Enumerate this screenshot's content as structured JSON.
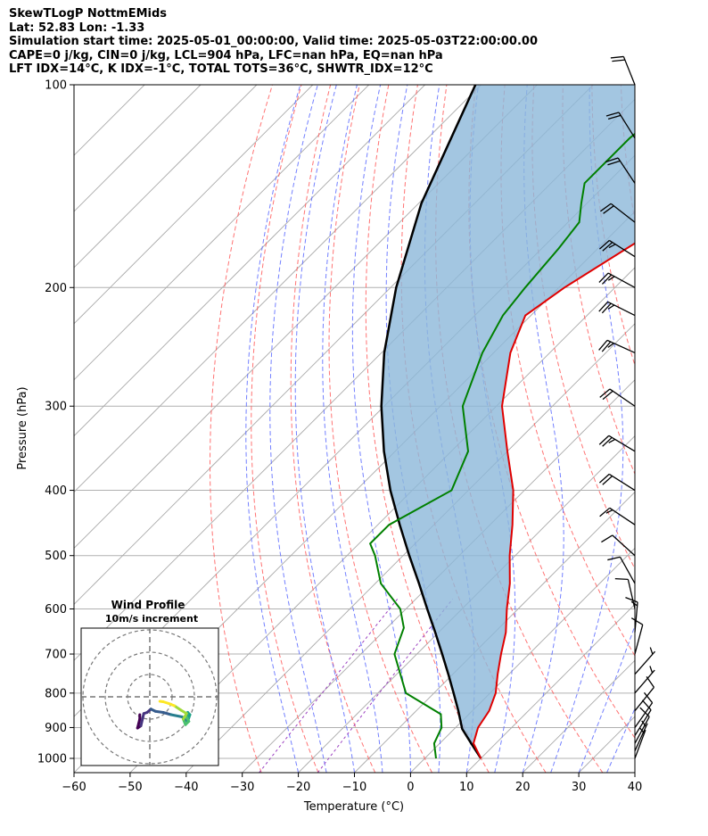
{
  "header": {
    "line1": "SkewTLogP NottmEMids",
    "line2": "Lat: 52.83   Lon: -1.33",
    "line3": "Simulation start time: 2025-05-01_00:00:00, Valid time: 2025-05-03T22:00:00.00",
    "line4": "CAPE=0 j/kg, CIN=0 j/kg, LCL=904 hPa, LFC=nan hPa, EQ=nan hPa",
    "line5": "LFT IDX=14°C, K IDX=-1°C, TOTAL TOTS=36°C, SHWTR_IDX=12°C"
  },
  "colors": {
    "temperature": "#e00000",
    "dewpoint": "#008000",
    "parcel": "#000000",
    "cape_fill": "#8cb8d9",
    "dry_adiabat": "#ff5a5a",
    "moist_adiabat": "#5a6aff",
    "mixing_ratio": "#9b40c0",
    "isotherm": "#aaaaaa"
  },
  "chart_data": [
    {
      "type": "line",
      "subtype": "skew-t log-p",
      "xlabel": "Temperature (°C)",
      "ylabel": "Pressure (hPa)",
      "xlim": [
        -60,
        40
      ],
      "ylim": [
        1050,
        100
      ],
      "y_scale": "log",
      "grid": true,
      "x_ticks": [
        -60,
        -50,
        -40,
        -30,
        -20,
        -10,
        0,
        10,
        20,
        30,
        40
      ],
      "x_tick_labels": [
        "−60",
        "−50",
        "−40",
        "−30",
        "−20",
        "−10",
        "0",
        "10",
        "20",
        "30",
        "40"
      ],
      "y_ticks": [
        1000,
        900,
        800,
        700,
        600,
        500,
        400,
        300,
        200,
        100
      ],
      "y_tick_labels": [
        "1000",
        "900",
        "800",
        "700",
        "600",
        "500",
        "400",
        "300",
        "200",
        "100"
      ],
      "series": [
        {
          "role": "temperature",
          "points": [
            [
              1000,
              10
            ],
            [
              950,
              6
            ],
            [
              900,
              4
            ],
            [
              850,
              3
            ],
            [
              800,
              1
            ],
            [
              750,
              -2
            ],
            [
              700,
              -5
            ],
            [
              650,
              -8
            ],
            [
              600,
              -12
            ],
            [
              550,
              -16
            ],
            [
              500,
              -21
            ],
            [
              450,
              -26
            ],
            [
              400,
              -32
            ],
            [
              350,
              -40
            ],
            [
              300,
              -49
            ],
            [
              250,
              -57
            ],
            [
              220,
              -61
            ],
            [
              200,
              -59
            ],
            [
              170,
              -54
            ],
            [
              150,
              -53
            ],
            [
              130,
              -53
            ],
            [
              115,
              -50
            ],
            [
              100,
              -46
            ]
          ]
        },
        {
          "role": "dewpoint",
          "points": [
            [
              1000,
              2
            ],
            [
              950,
              -1
            ],
            [
              900,
              -2.5
            ],
            [
              860,
              -5
            ],
            [
              800,
              -15
            ],
            [
              700,
              -24
            ],
            [
              640,
              -27
            ],
            [
              600,
              -31
            ],
            [
              550,
              -39
            ],
            [
              500,
              -45
            ],
            [
              480,
              -48
            ],
            [
              450,
              -48
            ],
            [
              400,
              -43
            ],
            [
              350,
              -47
            ],
            [
              300,
              -56
            ],
            [
              250,
              -62
            ],
            [
              220,
              -65
            ],
            [
              200,
              -66
            ],
            [
              175,
              -67
            ],
            [
              160,
              -68
            ],
            [
              150,
              -71
            ],
            [
              140,
              -74
            ],
            [
              120,
              -74
            ],
            [
              100,
              -72
            ]
          ]
        },
        {
          "role": "parcel",
          "points": [
            [
              1000,
              10
            ],
            [
              950,
              5.6
            ],
            [
              904,
              1.4
            ],
            [
              850,
              -2.5
            ],
            [
              800,
              -6.5
            ],
            [
              750,
              -10.8
            ],
            [
              700,
              -15.5
            ],
            [
              650,
              -20.6
            ],
            [
              600,
              -26.2
            ],
            [
              550,
              -32.2
            ],
            [
              500,
              -38.9
            ],
            [
              450,
              -46.1
            ],
            [
              400,
              -53.9
            ],
            [
              350,
              -62
            ],
            [
              300,
              -70.5
            ],
            [
              250,
              -79.5
            ],
            [
              200,
              -89
            ],
            [
              150,
              -99.5
            ],
            [
              100,
              -111
            ]
          ]
        }
      ],
      "cape_fill": "between parcel and temperature",
      "wind_barbs": [
        {
          "p": 1000,
          "u": 1.2,
          "v": 3.2
        },
        {
          "p": 975,
          "u": 1.5,
          "v": 3.3
        },
        {
          "p": 950,
          "u": 1.9,
          "v": 3.5
        },
        {
          "p": 925,
          "u": 2.2,
          "v": 3.5
        },
        {
          "p": 900,
          "u": 2.4,
          "v": 3.4
        },
        {
          "p": 850,
          "u": 2.6,
          "v": 3.2
        },
        {
          "p": 800,
          "u": 2.5,
          "v": 2.9
        },
        {
          "p": 750,
          "u": 2.3,
          "v": 2.6
        },
        {
          "p": 700,
          "u": 1.6,
          "v": 6.0
        },
        {
          "p": 650,
          "u": 0.6,
          "v": 6.7
        },
        {
          "p": 600,
          "u": -1.2,
          "v": 5.2
        },
        {
          "p": 550,
          "u": -2.5,
          "v": 4.5
        },
        {
          "p": 500,
          "u": -4.2,
          "v": 3.8
        },
        {
          "p": 450,
          "u": -6,
          "v": 4
        },
        {
          "p": 400,
          "u": -9.5,
          "v": 6
        },
        {
          "p": 350,
          "u": -10,
          "v": 6
        },
        {
          "p": 300,
          "u": -9.5,
          "v": 6.5
        },
        {
          "p": 250,
          "u": -11,
          "v": 5
        },
        {
          "p": 220,
          "u": -12,
          "v": 6
        },
        {
          "p": 200,
          "u": -12,
          "v": 6.5
        },
        {
          "p": 180,
          "u": -11,
          "v": 7
        },
        {
          "p": 160,
          "u": -9,
          "v": 7
        },
        {
          "p": 140,
          "u": -6,
          "v": 9
        },
        {
          "p": 120,
          "u": -5,
          "v": 8
        },
        {
          "p": 100,
          "u": -4,
          "v": 10
        }
      ]
    },
    {
      "type": "line",
      "subtype": "hodograph",
      "title": "Wind Profile",
      "subtitle": "10m/s increment",
      "ring_increment_ms": 10,
      "points": [
        [
          -4.5,
          -8
        ],
        [
          -4.5,
          -10
        ],
        [
          -5,
          -12
        ],
        [
          -5.5,
          -14
        ],
        [
          -4,
          -13
        ],
        [
          -2.7,
          -7.5
        ],
        [
          -1.2,
          -7
        ],
        [
          0.5,
          -5.5
        ],
        [
          2.5,
          -6.5
        ],
        [
          6,
          -7
        ],
        [
          9.5,
          -8
        ],
        [
          14.5,
          -9
        ],
        [
          15.5,
          -10
        ],
        [
          17,
          -11
        ],
        [
          18,
          -8
        ],
        [
          17,
          -7
        ],
        [
          16.5,
          -9
        ],
        [
          17.5,
          -11
        ],
        [
          16,
          -12.5
        ],
        [
          15,
          -10
        ],
        [
          16.5,
          -7.5
        ],
        [
          14,
          -6
        ],
        [
          11,
          -4
        ],
        [
          8.5,
          -3
        ],
        [
          6,
          -2.2
        ],
        [
          4.5,
          -2
        ]
      ]
    }
  ]
}
